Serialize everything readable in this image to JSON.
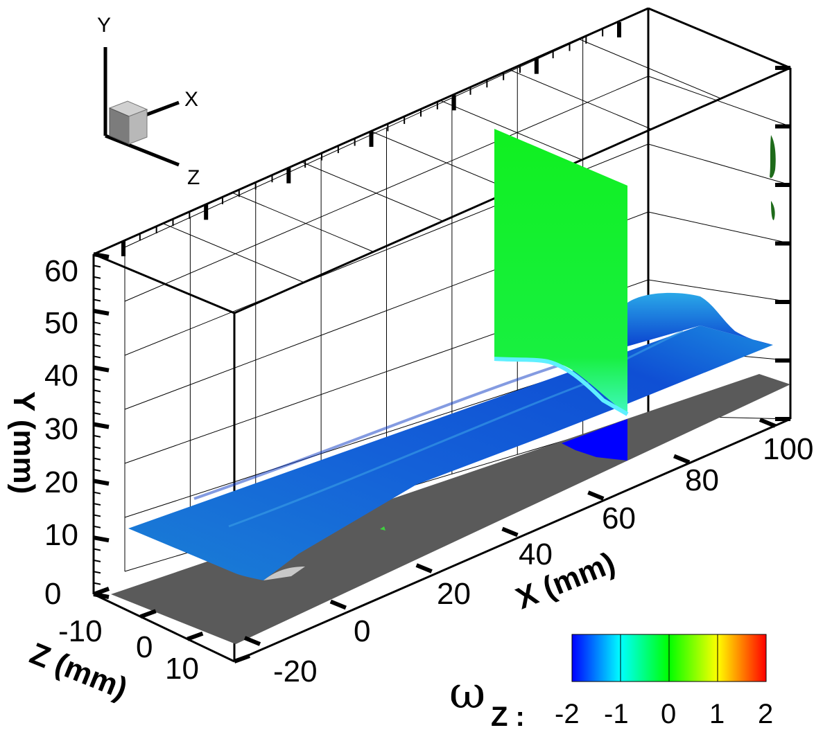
{
  "chart_data": {
    "type": "3d-surface-contour",
    "axes": {
      "x": {
        "label": "X (mm)",
        "ticks": [
          "-20",
          "0",
          "20",
          "40",
          "60",
          "80",
          "100"
        ],
        "range": [
          -28,
          108
        ]
      },
      "y": {
        "label": "Y (mm)",
        "ticks": [
          "0",
          "10",
          "20",
          "30",
          "40",
          "50",
          "60"
        ],
        "range": [
          0,
          63
        ]
      },
      "z": {
        "label": "Z (mm)",
        "ticks": [
          "-10",
          "0",
          "10"
        ],
        "range": [
          -15,
          15
        ]
      }
    },
    "orientation_triad": {
      "labels": [
        "Y",
        "X",
        "Z"
      ]
    },
    "colorbar": {
      "title": "ω",
      "subscript": "Z :",
      "ticks": [
        "-2",
        "-1",
        "0",
        "1",
        "2"
      ],
      "range": [
        -2,
        2
      ],
      "colors": [
        "#0000ff",
        "#00ffff",
        "#00ff00",
        "#ffff00",
        "#ff0000"
      ]
    },
    "grid": true,
    "legend_position": "bottom-right",
    "colors": {
      "floor": "#5a5a5a",
      "surface_low": "#0a3fd0",
      "surface_mid": "#1e7ad8",
      "slice_plane": "#12f028"
    }
  }
}
